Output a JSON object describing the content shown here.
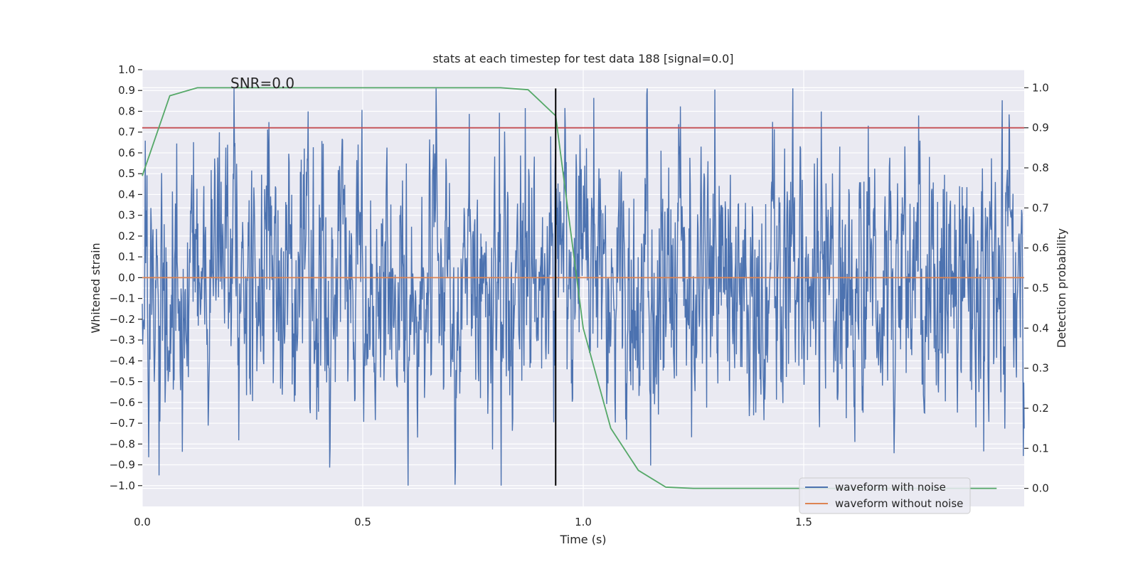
{
  "chart_data": {
    "type": "line",
    "title": "stats at each timestep for test data 188 [signal=0.0]",
    "xlabel": "Time (s)",
    "ylabel": "Whitened strain",
    "y2label": "Detection probability",
    "annotation": "SNR=0.0",
    "xlim": [
      0.0,
      2.0
    ],
    "ylim": [
      -1.1,
      1.0
    ],
    "y2lim": [
      -0.045,
      1.045
    ],
    "xticks": [
      0.0,
      0.5,
      1.0,
      1.5
    ],
    "xtick_labels": [
      "0.0",
      "0.5",
      "1.0",
      "1.5"
    ],
    "yticks": [
      1.0,
      0.9,
      0.8,
      0.7,
      0.6,
      0.5,
      0.4,
      0.3,
      0.2,
      0.1,
      0.0,
      -0.1,
      -0.2,
      -0.3,
      -0.4,
      -0.5,
      -0.6,
      -0.7,
      -0.8,
      -0.9,
      -1.0
    ],
    "ytick_labels": [
      "1.0",
      "0.9",
      "0.8",
      "0.7",
      "0.6",
      "0.5",
      "0.4",
      "0.3",
      "0.2",
      "0.1",
      "0.0",
      "−0.1",
      "−0.2",
      "−0.3",
      "−0.4",
      "−0.5",
      "−0.6",
      "−0.7",
      "−0.8",
      "−0.9",
      "−1.0"
    ],
    "y2ticks": [
      1.0,
      0.9,
      0.8,
      0.7,
      0.6,
      0.5,
      0.4,
      0.3,
      0.2,
      0.1,
      0.0
    ],
    "y2tick_labels": [
      "1.0",
      "0.9",
      "0.8",
      "0.7",
      "0.6",
      "0.5",
      "0.4",
      "0.3",
      "0.2",
      "0.1",
      "0.0"
    ],
    "grid": true,
    "legend_position": "lower-right",
    "colors": {
      "axes_bg": "#eaeaf2",
      "grid": "#ffffff",
      "noisy": "#4c72b0",
      "clean": "#dd8452",
      "probability": "#55a868",
      "threshold": "#c44e52",
      "marker": "#000000"
    },
    "series": [
      {
        "name": "waveform with noise",
        "axis": "left",
        "style": "noise",
        "x_range": [
          0.0,
          2.0
        ],
        "n_points": 2048,
        "envelope": [
          -1.0,
          0.91
        ]
      },
      {
        "name": "waveform without noise",
        "axis": "left",
        "x": [
          0.0,
          2.0
        ],
        "y": [
          0.0,
          0.0
        ]
      },
      {
        "axis": "right",
        "x": [
          0.0,
          0.0625,
          0.125,
          0.1875,
          0.25,
          0.3125,
          0.375,
          0.4375,
          0.5,
          0.5625,
          0.625,
          0.6875,
          0.75,
          0.8125,
          0.875,
          0.9375,
          1.0,
          1.0625,
          1.125,
          1.1875,
          1.25,
          1.3125,
          1.375,
          1.4375,
          1.5,
          1.5625,
          1.625,
          1.6875,
          1.75,
          1.8125,
          1.875,
          1.9375
        ],
        "y": [
          0.78,
          0.98,
          1.0,
          1.0,
          1.0,
          1.0,
          1.0,
          1.0,
          1.0,
          1.0,
          1.0,
          1.0,
          1.0,
          1.0,
          0.995,
          0.93,
          0.4,
          0.15,
          0.045,
          0.003,
          0.0,
          0.0,
          0.0,
          0.0,
          0.0,
          0.0,
          0.0,
          0.0,
          0.0,
          0.0,
          0.0,
          0.0
        ]
      },
      {
        "axis": "right",
        "x": [
          0.0,
          2.0
        ],
        "y": [
          0.9,
          0.9
        ]
      }
    ],
    "vertical_marker": {
      "x": 0.9375,
      "y_range": [
        -1.0,
        0.91
      ]
    }
  }
}
